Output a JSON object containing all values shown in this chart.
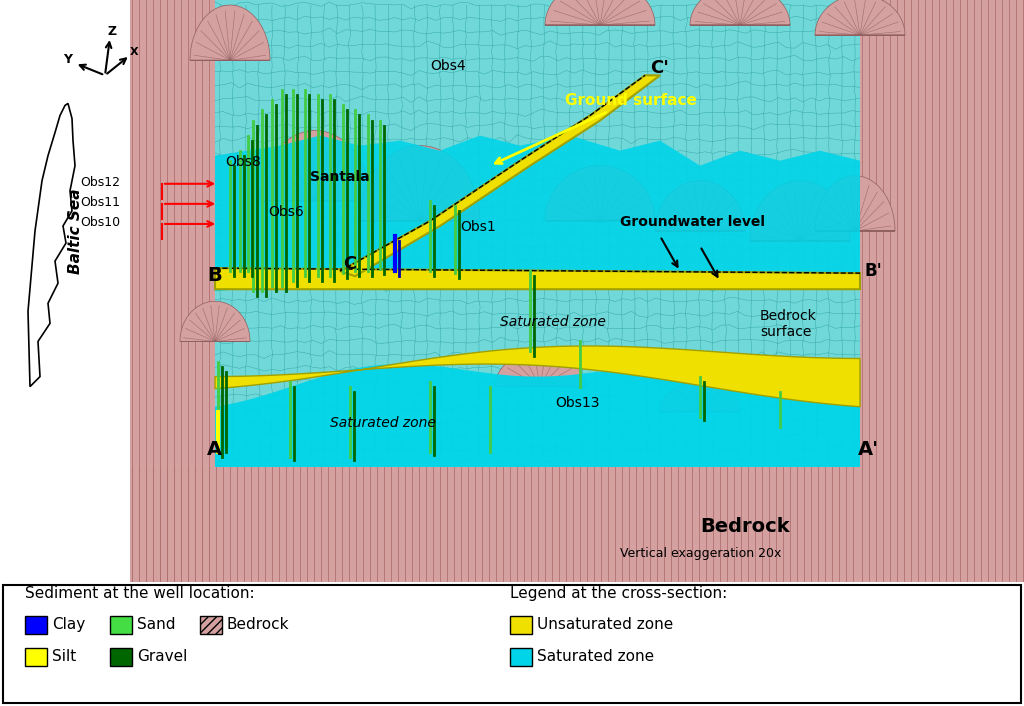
{
  "background_color": "#ffffff",
  "pink_color": "#d4a0a0",
  "pink_hatch_color": "#b07878",
  "cyan_color": "#00d4e8",
  "yellow_color": "#f0e000",
  "teal_mesh_color": "#50c8c8",
  "teal_mesh_line": "#209898",
  "white_color": "#ffffff",
  "legend_left_title": "Sediment at the well location:",
  "legend_right_title": "Legend at the cross-section:",
  "legend_items_left_row1": [
    {
      "label": "Clay",
      "color": "#0000ff",
      "hatch": ""
    },
    {
      "label": "Sand",
      "color": "#44dd44",
      "hatch": ""
    },
    {
      "label": "Bedrock",
      "color": "#d4a0a0",
      "hatch": "////"
    }
  ],
  "legend_items_left_row2": [
    {
      "label": "Silt",
      "color": "#ffff00",
      "hatch": ""
    },
    {
      "label": "Gravel",
      "color": "#006600",
      "hatch": ""
    }
  ],
  "legend_items_right_row1": [
    {
      "label": "Unsaturated zone",
      "color": "#f0e000",
      "hatch": ""
    }
  ],
  "legend_items_right_row2": [
    {
      "label": "Saturated zone",
      "color": "#00d4e8",
      "hatch": ""
    }
  ]
}
